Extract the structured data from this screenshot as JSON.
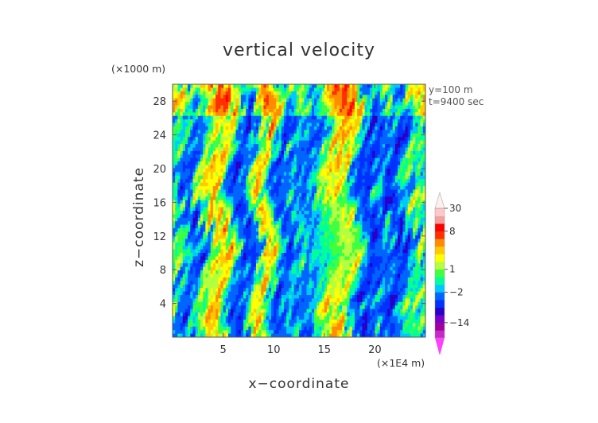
{
  "chart_data": {
    "type": "heatmap",
    "title": "vertical velocity",
    "xlabel": "x−coordinate",
    "ylabel": "z−coordinate",
    "x_unit": "(×1E4 m)",
    "y_unit": "(×1000 m)",
    "xlim": [
      0,
      25
    ],
    "ylim": [
      0,
      30
    ],
    "x_ticks": [
      "5",
      "10",
      "15",
      "20"
    ],
    "x_tick_values": [
      5,
      10,
      15,
      20
    ],
    "y_ticks": [
      "4",
      "8",
      "12",
      "16",
      "20",
      "24",
      "28"
    ],
    "y_tick_values": [
      4,
      8,
      12,
      16,
      20,
      24,
      28
    ],
    "annotations": [
      "y=100 m",
      "t=9400 sec"
    ],
    "colorbar": {
      "tick_labels": [
        "30",
        "8",
        "1",
        "−2",
        "−14"
      ],
      "tick_values": [
        30,
        8,
        1,
        -2,
        -14
      ],
      "levels": [
        -30,
        -22,
        -14,
        -10,
        -6,
        -4,
        -2,
        -1,
        0,
        1,
        2,
        3,
        4,
        6,
        8,
        14,
        22,
        30
      ],
      "colors": [
        "#ff40ff",
        "#c828c8",
        "#a000a0",
        "#7800c8",
        "#2800c8",
        "#0032ff",
        "#0064ff",
        "#00c8ff",
        "#00ff9a",
        "#40ff40",
        "#b4ff40",
        "#ffff00",
        "#ffc800",
        "#ff8c00",
        "#ff3000",
        "#ff0000",
        "#f5a0a0",
        "#ffc8c8",
        "#fff0f0"
      ],
      "extend": "both"
    }
  }
}
